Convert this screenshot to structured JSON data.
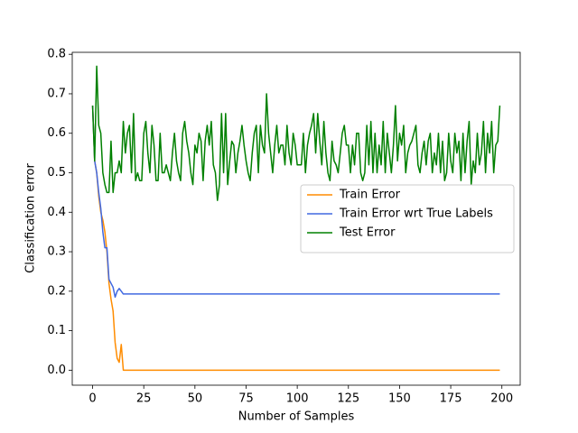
{
  "chart_data": {
    "type": "line",
    "xlabel": "Number of Samples",
    "ylabel": "Classification error",
    "x": [
      0,
      1,
      2,
      3,
      4,
      5,
      6,
      7,
      8,
      9,
      10,
      11,
      12,
      13,
      14,
      15,
      16,
      17,
      18,
      19,
      20,
      21,
      22,
      23,
      24,
      25,
      26,
      27,
      28,
      29,
      30,
      31,
      32,
      33,
      34,
      35,
      36,
      37,
      38,
      39,
      40,
      41,
      42,
      43,
      44,
      45,
      46,
      47,
      48,
      49,
      50,
      51,
      52,
      53,
      54,
      55,
      56,
      57,
      58,
      59,
      60,
      61,
      62,
      63,
      64,
      65,
      66,
      67,
      68,
      69,
      70,
      71,
      72,
      73,
      74,
      75,
      76,
      77,
      78,
      79,
      80,
      81,
      82,
      83,
      84,
      85,
      86,
      87,
      88,
      89,
      90,
      91,
      92,
      93,
      94,
      95,
      96,
      97,
      98,
      99,
      100,
      101,
      102,
      103,
      104,
      105,
      106,
      107,
      108,
      109,
      110,
      111,
      112,
      113,
      114,
      115,
      116,
      117,
      118,
      119,
      120,
      121,
      122,
      123,
      124,
      125,
      126,
      127,
      128,
      129,
      130,
      131,
      132,
      133,
      134,
      135,
      136,
      137,
      138,
      139,
      140,
      141,
      142,
      143,
      144,
      145,
      146,
      147,
      148,
      149,
      150,
      151,
      152,
      153,
      154,
      155,
      156,
      157,
      158,
      159,
      160,
      161,
      162,
      163,
      164,
      165,
      166,
      167,
      168,
      169,
      170,
      171,
      172,
      173,
      174,
      175,
      176,
      177,
      178,
      179,
      180,
      181,
      182,
      183,
      184,
      185,
      186,
      187,
      188,
      189,
      190,
      191,
      192,
      193,
      194,
      195,
      196,
      197,
      198,
      199
    ],
    "series": [
      {
        "name": "Train Error",
        "color": "#ff8c00",
        "values": [
          0.67,
          0.53,
          0.5,
          0.44,
          0.4,
          0.38,
          0.35,
          0.3,
          0.22,
          0.18,
          0.15,
          0.07,
          0.03,
          0.02,
          0.065,
          0,
          0,
          0,
          0,
          0,
          0,
          0,
          0,
          0,
          0,
          0,
          0,
          0,
          0,
          0,
          0,
          0,
          0,
          0,
          0,
          0,
          0,
          0,
          0,
          0,
          0,
          0,
          0,
          0,
          0,
          0,
          0,
          0,
          0,
          0,
          0,
          0,
          0,
          0,
          0,
          0,
          0,
          0,
          0,
          0,
          0,
          0,
          0,
          0,
          0,
          0,
          0,
          0,
          0,
          0,
          0,
          0,
          0,
          0,
          0,
          0,
          0,
          0,
          0,
          0,
          0,
          0,
          0,
          0,
          0,
          0,
          0,
          0,
          0,
          0,
          0,
          0,
          0,
          0,
          0,
          0,
          0,
          0,
          0,
          0,
          0,
          0,
          0,
          0,
          0,
          0,
          0,
          0,
          0,
          0,
          0,
          0,
          0,
          0,
          0,
          0,
          0,
          0,
          0,
          0,
          0,
          0,
          0,
          0,
          0,
          0,
          0,
          0,
          0,
          0,
          0,
          0,
          0,
          0,
          0,
          0,
          0,
          0,
          0,
          0,
          0,
          0,
          0,
          0,
          0,
          0,
          0,
          0,
          0,
          0,
          0,
          0,
          0,
          0,
          0,
          0,
          0,
          0,
          0,
          0,
          0,
          0,
          0,
          0,
          0,
          0,
          0,
          0,
          0,
          0,
          0,
          0,
          0,
          0,
          0,
          0,
          0,
          0,
          0,
          0,
          0,
          0,
          0,
          0,
          0,
          0,
          0,
          0,
          0,
          0,
          0,
          0,
          0,
          0,
          0,
          0,
          0,
          0,
          0,
          0
        ]
      },
      {
        "name": "Train Error wrt True Labels",
        "color": "#4169e1",
        "values": [
          0.67,
          0.53,
          0.5,
          0.45,
          0.41,
          0.35,
          0.31,
          0.31,
          0.23,
          0.22,
          0.21,
          0.185,
          0.2,
          0.207,
          0.2,
          0.193,
          0.193,
          0.193,
          0.193,
          0.193,
          0.193,
          0.193,
          0.193,
          0.193,
          0.193,
          0.193,
          0.193,
          0.193,
          0.193,
          0.193,
          0.193,
          0.193,
          0.193,
          0.193,
          0.193,
          0.193,
          0.193,
          0.193,
          0.193,
          0.193,
          0.193,
          0.193,
          0.193,
          0.193,
          0.193,
          0.193,
          0.193,
          0.193,
          0.193,
          0.193,
          0.193,
          0.193,
          0.193,
          0.193,
          0.193,
          0.193,
          0.193,
          0.193,
          0.193,
          0.193,
          0.193,
          0.193,
          0.193,
          0.193,
          0.193,
          0.193,
          0.193,
          0.193,
          0.193,
          0.193,
          0.193,
          0.193,
          0.193,
          0.193,
          0.193,
          0.193,
          0.193,
          0.193,
          0.193,
          0.193,
          0.193,
          0.193,
          0.193,
          0.193,
          0.193,
          0.193,
          0.193,
          0.193,
          0.193,
          0.193,
          0.193,
          0.193,
          0.193,
          0.193,
          0.193,
          0.193,
          0.193,
          0.193,
          0.193,
          0.193,
          0.193,
          0.193,
          0.193,
          0.193,
          0.193,
          0.193,
          0.193,
          0.193,
          0.193,
          0.193,
          0.193,
          0.193,
          0.193,
          0.193,
          0.193,
          0.193,
          0.193,
          0.193,
          0.193,
          0.193,
          0.193,
          0.193,
          0.193,
          0.193,
          0.193,
          0.193,
          0.193,
          0.193,
          0.193,
          0.193,
          0.193,
          0.193,
          0.193,
          0.193,
          0.193,
          0.193,
          0.193,
          0.193,
          0.193,
          0.193,
          0.193,
          0.193,
          0.193,
          0.193,
          0.193,
          0.193,
          0.193,
          0.193,
          0.193,
          0.193,
          0.193,
          0.193,
          0.193,
          0.193,
          0.193,
          0.193,
          0.193,
          0.193,
          0.193,
          0.193,
          0.193,
          0.193,
          0.193,
          0.193,
          0.193,
          0.193,
          0.193,
          0.193,
          0.193,
          0.193,
          0.193,
          0.193,
          0.193,
          0.193,
          0.193,
          0.193,
          0.193,
          0.193,
          0.193,
          0.193,
          0.193,
          0.193,
          0.193,
          0.193,
          0.193,
          0.193,
          0.193,
          0.193,
          0.193,
          0.193,
          0.193,
          0.193,
          0.193,
          0.193,
          0.193,
          0.193,
          0.193,
          0.193,
          0.193,
          0.193
        ]
      },
      {
        "name": "Test Error",
        "color": "#008000",
        "values": [
          0.67,
          0.53,
          0.77,
          0.62,
          0.6,
          0.5,
          0.47,
          0.45,
          0.45,
          0.58,
          0.45,
          0.5,
          0.5,
          0.53,
          0.5,
          0.63,
          0.55,
          0.6,
          0.62,
          0.5,
          0.65,
          0.48,
          0.5,
          0.48,
          0.48,
          0.6,
          0.63,
          0.55,
          0.5,
          0.62,
          0.57,
          0.48,
          0.48,
          0.6,
          0.5,
          0.5,
          0.52,
          0.5,
          0.48,
          0.55,
          0.6,
          0.53,
          0.5,
          0.48,
          0.6,
          0.63,
          0.58,
          0.55,
          0.5,
          0.47,
          0.57,
          0.55,
          0.6,
          0.58,
          0.48,
          0.58,
          0.62,
          0.57,
          0.63,
          0.52,
          0.5,
          0.43,
          0.47,
          0.65,
          0.5,
          0.65,
          0.47,
          0.53,
          0.58,
          0.57,
          0.5,
          0.55,
          0.58,
          0.62,
          0.57,
          0.53,
          0.5,
          0.48,
          0.55,
          0.6,
          0.62,
          0.5,
          0.62,
          0.57,
          0.55,
          0.7,
          0.6,
          0.55,
          0.5,
          0.57,
          0.62,
          0.55,
          0.57,
          0.57,
          0.52,
          0.62,
          0.55,
          0.52,
          0.6,
          0.57,
          0.52,
          0.52,
          0.52,
          0.6,
          0.5,
          0.57,
          0.6,
          0.62,
          0.65,
          0.55,
          0.65,
          0.58,
          0.52,
          0.63,
          0.55,
          0.5,
          0.48,
          0.58,
          0.53,
          0.52,
          0.5,
          0.55,
          0.6,
          0.62,
          0.57,
          0.57,
          0.5,
          0.57,
          0.52,
          0.6,
          0.6,
          0.5,
          0.48,
          0.5,
          0.62,
          0.52,
          0.63,
          0.5,
          0.6,
          0.5,
          0.57,
          0.52,
          0.63,
          0.5,
          0.6,
          0.55,
          0.5,
          0.57,
          0.67,
          0.53,
          0.6,
          0.57,
          0.62,
          0.5,
          0.55,
          0.57,
          0.58,
          0.6,
          0.62,
          0.52,
          0.5,
          0.55,
          0.58,
          0.52,
          0.58,
          0.6,
          0.5,
          0.55,
          0.52,
          0.6,
          0.5,
          0.58,
          0.48,
          0.5,
          0.6,
          0.53,
          0.5,
          0.6,
          0.55,
          0.58,
          0.48,
          0.6,
          0.5,
          0.58,
          0.63,
          0.47,
          0.53,
          0.5,
          0.6,
          0.52,
          0.55,
          0.63,
          0.5,
          0.6,
          0.55,
          0.63,
          0.5,
          0.57,
          0.58,
          0.67
        ]
      }
    ],
    "xlim": [
      -9.95,
      208.95
    ],
    "xticks": [
      0,
      25,
      50,
      75,
      100,
      125,
      150,
      175,
      200
    ],
    "ylim": [
      -0.038,
      0.805
    ],
    "yticks": [
      {
        "value": 0,
        "label": "0.0"
      },
      0.1,
      0.2,
      0.3,
      0.4,
      0.5,
      0.6,
      0.7,
      0.8
    ],
    "grid": false,
    "legend": "center right"
  }
}
